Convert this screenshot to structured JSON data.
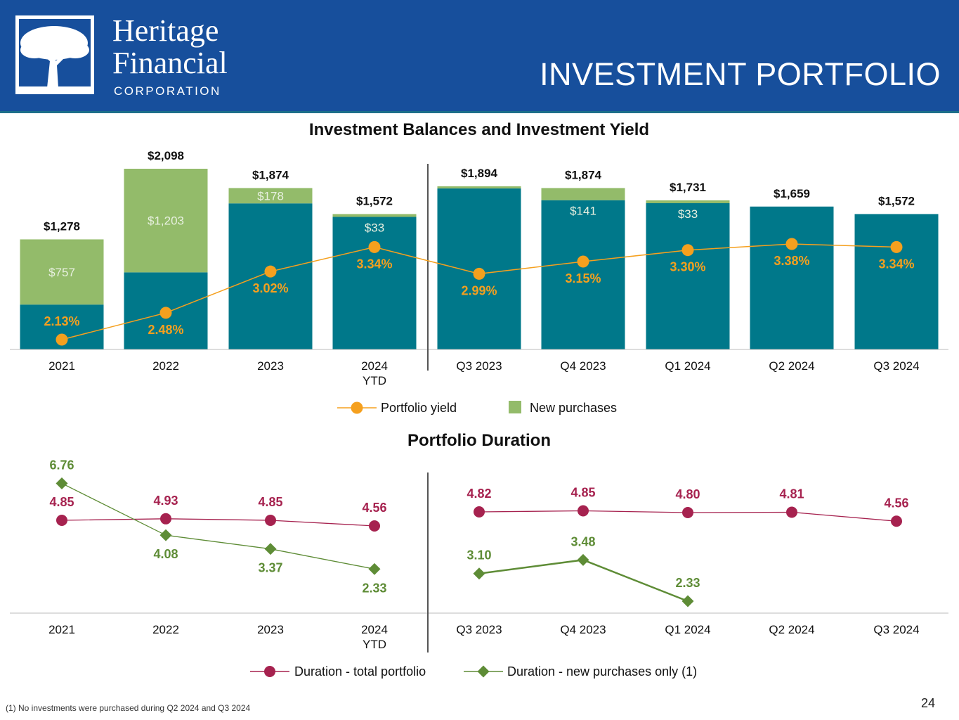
{
  "header": {
    "company_line1": "Heritage",
    "company_line2": "Financial",
    "company_line3": "CORPORATION",
    "title": "INVESTMENT PORTFOLIO"
  },
  "colors": {
    "header_bg": "#174f9c",
    "balance": "#00788a",
    "new_purchases": "#93bb6a",
    "yield": "#f5a01e",
    "duration_total": "#a6224f",
    "duration_new": "#5e8c36"
  },
  "chart_data": [
    {
      "type": "bar",
      "title": "Investment Balances and Investment Yield",
      "categories": [
        "2021",
        "2022",
        "2023",
        "2024\nYTD",
        "Q3 2023",
        "Q4 2023",
        "Q1 2024",
        "Q2 2024",
        "Q3 2024"
      ],
      "totals": [
        1278,
        2098,
        1874,
        1572,
        1894,
        1874,
        1731,
        1659,
        1572
      ],
      "total_labels": [
        "$1,278",
        "$2,098",
        "$1,874",
        "$1,572",
        "$1,894",
        "$1,874",
        "$1,731",
        "$1,659",
        "$1,572"
      ],
      "series": [
        {
          "name": "New purchases",
          "values": [
            757,
            1203,
            178,
            33,
            25,
            141,
            33,
            0,
            0
          ],
          "labels": [
            "$757",
            "$1,203",
            "$178",
            "$33",
            "",
            "$141",
            "$33",
            "",
            ""
          ]
        },
        {
          "name": "Portfolio yield",
          "values": [
            2.13,
            2.48,
            3.02,
            3.34,
            2.99,
            3.15,
            3.3,
            3.38,
            3.34
          ],
          "labels": [
            "2.13%",
            "2.48%",
            "3.02%",
            "3.34%",
            "2.99%",
            "3.15%",
            "3.30%",
            "3.38%",
            "3.34%"
          ]
        }
      ],
      "legend": [
        "Portfolio yield",
        "New purchases"
      ],
      "legend_position": "bottom"
    },
    {
      "type": "line",
      "title": "Portfolio Duration",
      "categories": [
        "2021",
        "2022",
        "2023",
        "2024\nYTD",
        "Q3 2023",
        "Q4 2023",
        "Q1 2024",
        "Q2 2024",
        "Q3 2024"
      ],
      "series": [
        {
          "name": "Duration - total portfolio",
          "values": [
            4.85,
            4.93,
            4.85,
            4.56,
            4.82,
            4.85,
            4.8,
            4.81,
            4.56
          ]
        },
        {
          "name": "Duration - new purchases only (1)",
          "values": [
            6.76,
            4.08,
            3.37,
            2.33,
            3.1,
            3.48,
            2.33,
            null,
            null
          ]
        }
      ],
      "legend_position": "bottom"
    }
  ],
  "footnote": "(1) No investments were purchased during Q2 2024 and Q3 2024",
  "page_number": "24"
}
